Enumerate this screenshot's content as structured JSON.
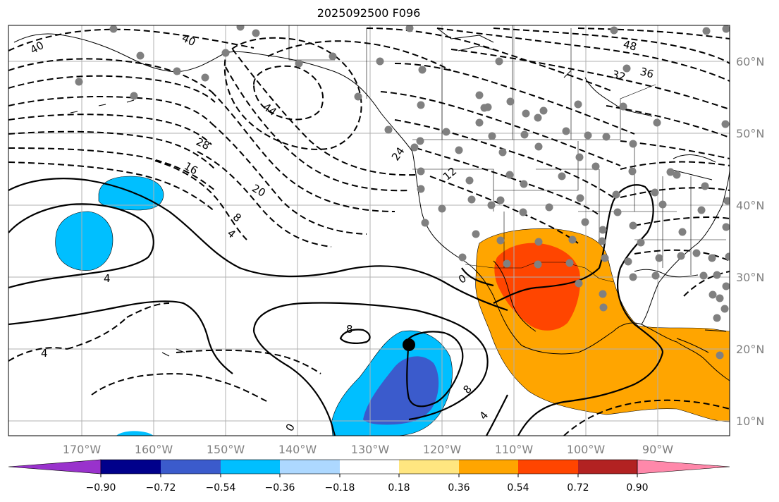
{
  "title": "2025092500 F096",
  "map": {
    "lon_labels": [
      "170°W",
      "160°W",
      "150°W",
      "140°W",
      "130°W",
      "120°W",
      "110°W",
      "100°W",
      "90°W"
    ],
    "lat_labels": [
      "60°N",
      "50°N",
      "40°N",
      "30°N",
      "20°N",
      "10°N"
    ],
    "contour_labels": [
      "40",
      "40",
      "48",
      "32",
      "36",
      "44",
      "28",
      "24",
      "16",
      "12",
      "20",
      "8",
      "4",
      "4",
      "0",
      "4",
      "8",
      "8",
      "0",
      "4"
    ]
  },
  "colorbar": {
    "tick_labels": [
      "−0.90",
      "−0.72",
      "−0.54",
      "−0.36",
      "−0.18",
      "0.18",
      "0.36",
      "0.54",
      "0.72",
      "0.90"
    ],
    "colors": [
      "#9932cc",
      "#00008b",
      "#3b5bcc",
      "#00bfff",
      "#add8ff",
      "#ffffff",
      "#ffe680",
      "#ffa500",
      "#ff4500",
      "#b22222",
      "#ff88aa"
    ]
  }
}
